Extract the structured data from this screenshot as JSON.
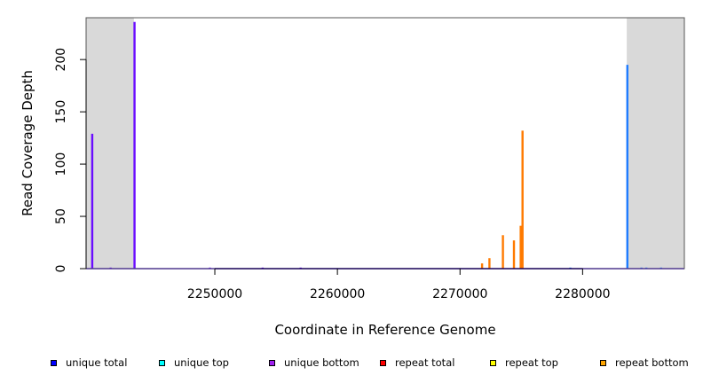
{
  "chart_data": {
    "type": "bar",
    "xlabel": "Coordinate in Reference Genome",
    "ylabel": "Read Coverage Depth",
    "xlim": [
      2239500,
      2288300
    ],
    "ylim": [
      0,
      240
    ],
    "grid": false,
    "x_ticks": [
      2250000,
      2260000,
      2270000,
      2280000
    ],
    "x_tick_labels": [
      "2250000",
      "2260000",
      "2270000",
      "2280000"
    ],
    "y_ticks": [
      0,
      50,
      100,
      150,
      200
    ],
    "y_tick_labels": [
      "0",
      "50",
      "100",
      "150",
      "200"
    ],
    "shaded_regions": [
      [
        2239500,
        2243400
      ],
      [
        2283600,
        2288300
      ]
    ],
    "baseline_color": "#4400ff",
    "series": [
      {
        "color": "#6a0dff",
        "points": [
          {
            "x": 2240000,
            "y": 129
          },
          {
            "x": 2243450,
            "y": 236
          },
          {
            "x": 2241500,
            "y": 1
          },
          {
            "x": 2249600,
            "y": 1
          },
          {
            "x": 2253900,
            "y": 1
          },
          {
            "x": 2257000,
            "y": 1
          }
        ]
      },
      {
        "color": "#ff7a00",
        "points": [
          {
            "x": 2271800,
            "y": 5
          },
          {
            "x": 2272400,
            "y": 10
          },
          {
            "x": 2273500,
            "y": 32
          },
          {
            "x": 2274400,
            "y": 27
          },
          {
            "x": 2274950,
            "y": 41
          },
          {
            "x": 2275100,
            "y": 132
          }
        ]
      },
      {
        "color": "#1e7bff",
        "points": [
          {
            "x": 2279000,
            "y": 1
          },
          {
            "x": 2283650,
            "y": 195
          },
          {
            "x": 2284800,
            "y": 1
          },
          {
            "x": 2285200,
            "y": 1
          },
          {
            "x": 2286400,
            "y": 1
          }
        ]
      }
    ]
  },
  "legend": [
    {
      "label": "unique total",
      "color": "#0000ff"
    },
    {
      "label": "unique top",
      "color": "#00ffff"
    },
    {
      "label": "unique bottom",
      "color": "#a020f0"
    },
    {
      "label": "repeat total",
      "color": "#ff0000"
    },
    {
      "label": "repeat top",
      "color": "#ffff00"
    },
    {
      "label": "repeat bottom",
      "color": "#ffa500"
    }
  ]
}
